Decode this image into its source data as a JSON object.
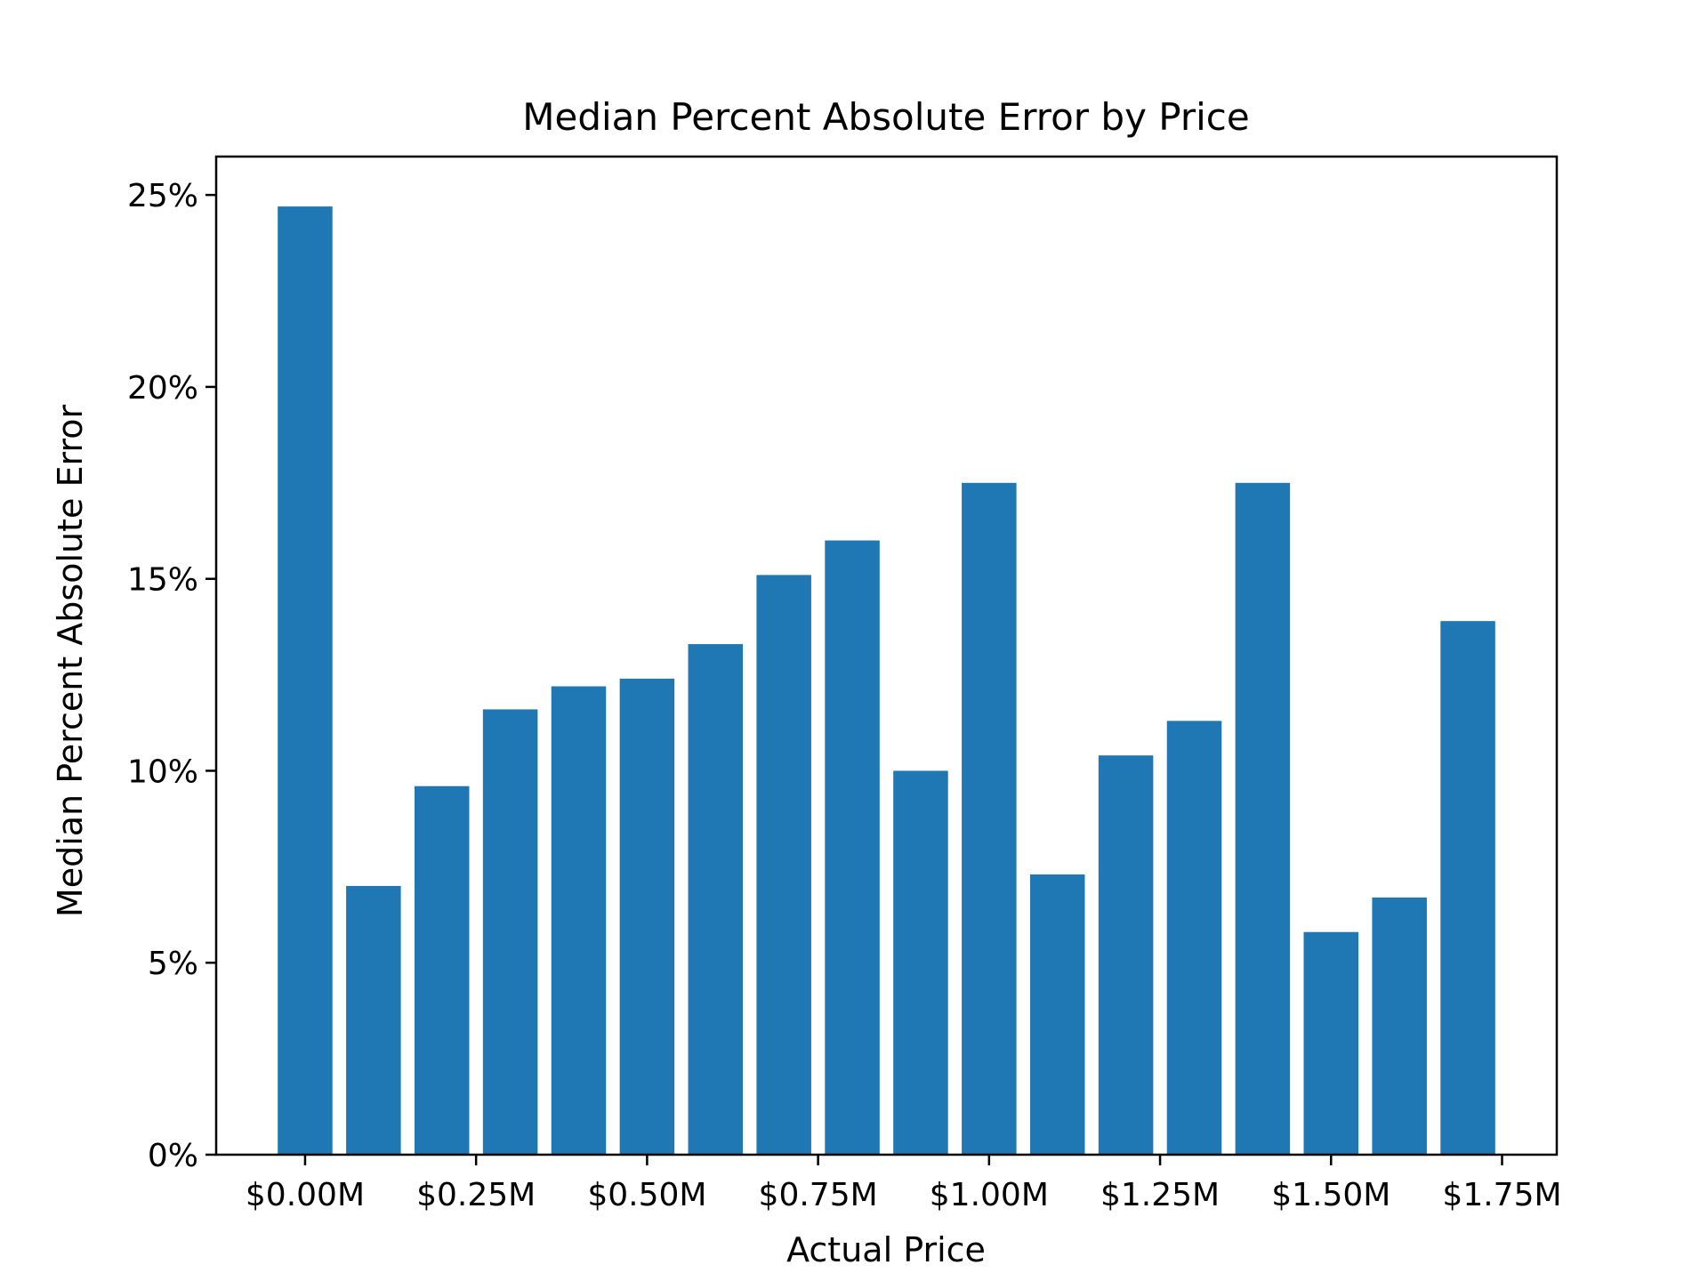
{
  "chart_data": {
    "type": "bar",
    "title": "Median Percent Absolute Error by Price",
    "xlabel": "Actual Price",
    "ylabel": "Median Percent Absolute Error",
    "x": [
      0.0,
      0.1,
      0.2,
      0.3,
      0.4,
      0.5,
      0.6,
      0.7,
      0.8,
      0.9,
      1.0,
      1.1,
      1.2,
      1.3,
      1.4,
      1.5,
      1.6,
      1.7
    ],
    "values": [
      24.7,
      7.0,
      9.6,
      11.6,
      12.2,
      12.4,
      13.3,
      15.1,
      16.0,
      10.0,
      17.5,
      7.3,
      10.4,
      11.3,
      17.5,
      5.8,
      6.7,
      13.9
    ],
    "value_unit": "%",
    "xlim": [
      -0.13,
      1.83
    ],
    "ylim": [
      0,
      26
    ],
    "x_ticks": [
      0.0,
      0.25,
      0.5,
      0.75,
      1.0,
      1.25,
      1.5,
      1.75
    ],
    "x_tick_labels": [
      "$0.00M",
      "$0.25M",
      "$0.50M",
      "$0.75M",
      "$1.00M",
      "$1.25M",
      "$1.50M",
      "$1.75M"
    ],
    "y_ticks": [
      0,
      5,
      10,
      15,
      20,
      25
    ],
    "y_tick_labels": [
      "0%",
      "5%",
      "10%",
      "15%",
      "20%",
      "25%"
    ],
    "bar_color": "#1f77b4",
    "grid": false,
    "legend": "none"
  }
}
